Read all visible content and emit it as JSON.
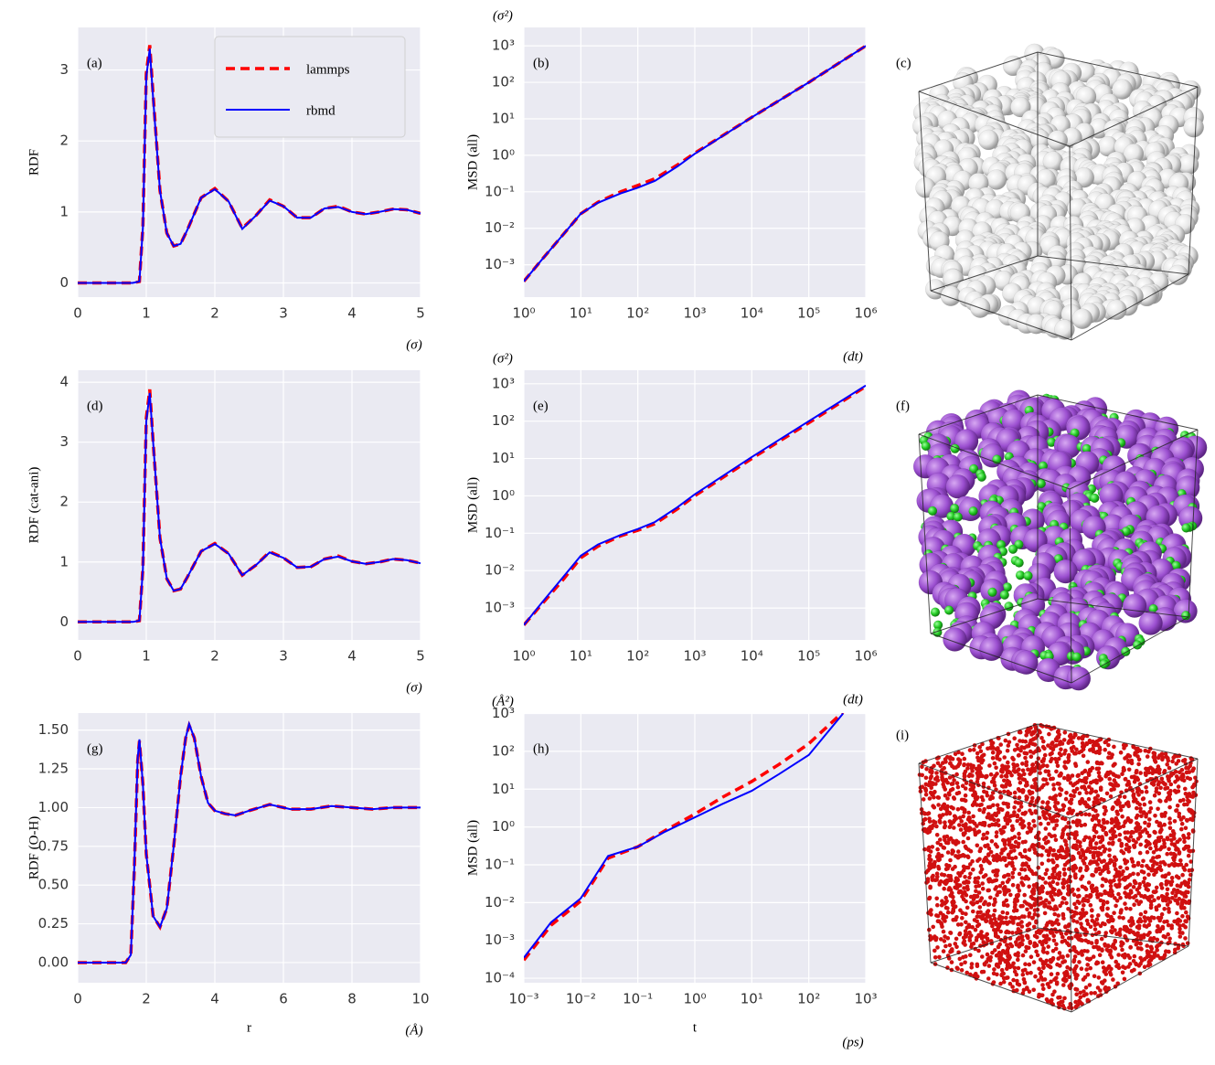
{
  "chart_data": [
    {
      "type": "line",
      "panel_label": "(a)",
      "ylabel": "RDF",
      "x_unit": "(σ)",
      "legend": "upper right",
      "grid": true,
      "xlim": [
        0,
        5
      ],
      "xticks": [
        0,
        1,
        2,
        3,
        4,
        5
      ],
      "ylim": [
        -0.2,
        3.6
      ],
      "yticks": [
        0,
        1,
        2,
        3
      ],
      "x": [
        0,
        0.5,
        0.8,
        0.9,
        0.95,
        1.0,
        1.05,
        1.1,
        1.2,
        1.3,
        1.4,
        1.5,
        1.6,
        1.8,
        2.0,
        2.2,
        2.4,
        2.6,
        2.8,
        3.0,
        3.2,
        3.4,
        3.6,
        3.8,
        4.0,
        4.2,
        4.4,
        4.6,
        4.8,
        5.0
      ],
      "series": [
        {
          "name": "lammps",
          "color": "#ff0000",
          "dashed": true,
          "values": [
            0,
            0,
            0,
            0.02,
            0.8,
            2.95,
            3.35,
            2.65,
            1.3,
            0.7,
            0.52,
            0.55,
            0.75,
            1.2,
            1.33,
            1.15,
            0.77,
            0.95,
            1.17,
            1.08,
            0.92,
            0.92,
            1.05,
            1.08,
            1.0,
            0.97,
            1.0,
            1.04,
            1.03,
            0.98
          ]
        },
        {
          "name": "rbmd",
          "color": "#0000ff",
          "dashed": false,
          "values": [
            0,
            0,
            0,
            0.02,
            0.78,
            2.9,
            3.3,
            2.6,
            1.3,
            0.7,
            0.52,
            0.55,
            0.75,
            1.2,
            1.32,
            1.15,
            0.76,
            0.95,
            1.16,
            1.08,
            0.92,
            0.92,
            1.05,
            1.07,
            1.0,
            0.97,
            1.0,
            1.04,
            1.03,
            0.98
          ]
        }
      ]
    },
    {
      "type": "line",
      "panel_label": "(b)",
      "ylabel": "MSD (all)",
      "x_unit": "(dt)",
      "y_unit": "(σ²)",
      "grid": true,
      "xscale": "log",
      "yscale": "log",
      "xlim": [
        1,
        1000000
      ],
      "xticks": [
        {
          "value": 1,
          "label": "10⁰"
        },
        {
          "value": 10,
          "label": "10¹"
        },
        {
          "value": 100,
          "label": "10²"
        },
        {
          "value": 1000,
          "label": "10³"
        },
        {
          "value": 10000,
          "label": "10⁴"
        },
        {
          "value": 100000,
          "label": "10⁵"
        },
        {
          "value": 1000000,
          "label": "10⁶"
        }
      ],
      "ylim": [
        0.00013,
        3200
      ],
      "yticks": [
        {
          "value": 0.001,
          "label": "10⁻³"
        },
        {
          "value": 0.01,
          "label": "10⁻²"
        },
        {
          "value": 0.1,
          "label": "10⁻¹"
        },
        {
          "value": 1,
          "label": "10⁰"
        },
        {
          "value": 10,
          "label": "10¹"
        },
        {
          "value": 100,
          "label": "10²"
        },
        {
          "value": 1000,
          "label": "10³"
        }
      ],
      "x": [
        1,
        2,
        5,
        10,
        20,
        50,
        100,
        200,
        500,
        1000,
        10000,
        100000,
        1000000
      ],
      "series": [
        {
          "name": "lammps",
          "color": "#ff0000",
          "dashed": true,
          "values": [
            0.00035,
            0.0013,
            0.007,
            0.025,
            0.052,
            0.1,
            0.15,
            0.23,
            0.55,
            1.15,
            11,
            100,
            1000
          ]
        },
        {
          "name": "rbmd",
          "color": "#0000ff",
          "dashed": false,
          "values": [
            0.00035,
            0.0013,
            0.007,
            0.025,
            0.05,
            0.09,
            0.13,
            0.2,
            0.5,
            1.1,
            11,
            100,
            1000
          ]
        }
      ]
    },
    {
      "type": "line",
      "panel_label": "(d)",
      "ylabel": "RDF (cat-ani)",
      "x_unit": "(σ)",
      "grid": true,
      "xlim": [
        0,
        5
      ],
      "xticks": [
        0,
        1,
        2,
        3,
        4,
        5
      ],
      "ylim": [
        -0.3,
        4.2
      ],
      "yticks": [
        0,
        1,
        2,
        3,
        4
      ],
      "x": [
        0,
        0.5,
        0.8,
        0.9,
        0.95,
        1.0,
        1.05,
        1.1,
        1.2,
        1.3,
        1.4,
        1.5,
        1.6,
        1.8,
        2.0,
        2.2,
        2.4,
        2.6,
        2.8,
        3.0,
        3.2,
        3.4,
        3.6,
        3.8,
        4.0,
        4.2,
        4.4,
        4.6,
        4.8,
        5.0
      ],
      "series": [
        {
          "name": "lammps",
          "color": "#ff0000",
          "dashed": true,
          "values": [
            0,
            0,
            0,
            0.02,
            0.9,
            3.4,
            3.88,
            3.0,
            1.4,
            0.72,
            0.52,
            0.55,
            0.75,
            1.18,
            1.31,
            1.14,
            0.78,
            0.95,
            1.17,
            1.07,
            0.91,
            0.92,
            1.05,
            1.1,
            1.01,
            0.97,
            1.0,
            1.05,
            1.03,
            0.98
          ]
        },
        {
          "name": "rbmd",
          "color": "#0000ff",
          "dashed": false,
          "values": [
            0,
            0,
            0,
            0.02,
            0.88,
            3.35,
            3.82,
            3.0,
            1.4,
            0.72,
            0.52,
            0.55,
            0.75,
            1.18,
            1.3,
            1.14,
            0.78,
            0.95,
            1.16,
            1.07,
            0.91,
            0.92,
            1.05,
            1.09,
            1.01,
            0.97,
            1.0,
            1.05,
            1.03,
            0.98
          ]
        }
      ]
    },
    {
      "type": "line",
      "panel_label": "(e)",
      "ylabel": "MSD (all)",
      "x_unit": "(dt)",
      "y_unit": "(σ²)",
      "grid": true,
      "xscale": "log",
      "yscale": "log",
      "xlim": [
        1,
        1000000
      ],
      "xticks": [
        {
          "value": 1,
          "label": "10⁰"
        },
        {
          "value": 10,
          "label": "10¹"
        },
        {
          "value": 100,
          "label": "10²"
        },
        {
          "value": 1000,
          "label": "10³"
        },
        {
          "value": 10000,
          "label": "10⁴"
        },
        {
          "value": 100000,
          "label": "10⁵"
        },
        {
          "value": 1000000,
          "label": "10⁶"
        }
      ],
      "ylim": [
        0.00014,
        2300
      ],
      "yticks": [
        {
          "value": 0.001,
          "label": "10⁻³"
        },
        {
          "value": 0.01,
          "label": "10⁻²"
        },
        {
          "value": 0.1,
          "label": "10⁻¹"
        },
        {
          "value": 1,
          "label": "10⁰"
        },
        {
          "value": 10,
          "label": "10¹"
        },
        {
          "value": 100,
          "label": "10²"
        },
        {
          "value": 1000,
          "label": "10³"
        }
      ],
      "x": [
        1,
        2,
        5,
        10,
        20,
        50,
        100,
        200,
        500,
        1000,
        10000,
        100000,
        1000000
      ],
      "series": [
        {
          "name": "lammps",
          "color": "#ff0000",
          "dashed": true,
          "values": [
            0.00035,
            0.0012,
            0.006,
            0.022,
            0.045,
            0.085,
            0.12,
            0.18,
            0.45,
            1.0,
            10,
            90,
            850
          ]
        },
        {
          "name": "rbmd",
          "color": "#0000ff",
          "dashed": false,
          "values": [
            0.00035,
            0.0013,
            0.007,
            0.025,
            0.05,
            0.09,
            0.13,
            0.2,
            0.5,
            1.1,
            11,
            100,
            900
          ]
        }
      ]
    },
    {
      "type": "line",
      "panel_label": "(g)",
      "ylabel": "RDF (O-H)",
      "xlabel": "r",
      "x_unit": "(Å)",
      "grid": true,
      "xlim": [
        0,
        10
      ],
      "xticks": [
        0,
        2,
        4,
        6,
        8,
        10
      ],
      "ylim": [
        -0.13,
        1.61
      ],
      "yticks": [
        {
          "value": 0,
          "label": "0.00"
        },
        0.25,
        {
          "value": 0.5,
          "label": "0.50"
        },
        0.75,
        {
          "value": 1,
          "label": "1.00"
        },
        1.25,
        {
          "value": 1.5,
          "label": "1.50"
        }
      ],
      "x": [
        0,
        1.4,
        1.55,
        1.65,
        1.75,
        1.8,
        1.9,
        2.0,
        2.2,
        2.4,
        2.6,
        2.8,
        3.0,
        3.15,
        3.25,
        3.4,
        3.6,
        3.8,
        4.0,
        4.3,
        4.6,
        5.0,
        5.6,
        6.2,
        6.8,
        7.4,
        8.0,
        8.6,
        9.2,
        10
      ],
      "series": [
        {
          "name": "lammps",
          "color": "#ff0000",
          "dashed": true,
          "values": [
            0,
            0,
            0.05,
            0.6,
            1.3,
            1.43,
            1.15,
            0.7,
            0.3,
            0.23,
            0.35,
            0.75,
            1.2,
            1.45,
            1.53,
            1.45,
            1.2,
            1.03,
            0.98,
            0.96,
            0.95,
            0.98,
            1.02,
            0.99,
            0.99,
            1.01,
            1.0,
            0.99,
            1.0,
            1.0
          ]
        },
        {
          "name": "rbmd",
          "color": "#0000ff",
          "dashed": false,
          "values": [
            0,
            0,
            0.05,
            0.62,
            1.32,
            1.44,
            1.15,
            0.7,
            0.3,
            0.23,
            0.35,
            0.75,
            1.2,
            1.45,
            1.54,
            1.45,
            1.2,
            1.03,
            0.98,
            0.96,
            0.95,
            0.98,
            1.02,
            0.99,
            0.99,
            1.01,
            1.0,
            0.99,
            1.0,
            1.0
          ]
        }
      ]
    },
    {
      "type": "line",
      "panel_label": "(h)",
      "ylabel": "MSD (all)",
      "xlabel": "t",
      "x_unit": "(ps)",
      "y_unit": "(Å²)",
      "grid": true,
      "xscale": "log",
      "yscale": "log",
      "xlim": [
        0.001,
        1000
      ],
      "xticks": [
        {
          "value": 0.001,
          "label": "10⁻³"
        },
        {
          "value": 0.01,
          "label": "10⁻²"
        },
        {
          "value": 0.1,
          "label": "10⁻¹"
        },
        {
          "value": 1,
          "label": "10⁰"
        },
        {
          "value": 10,
          "label": "10¹"
        },
        {
          "value": 100,
          "label": "10²"
        },
        {
          "value": 1000,
          "label": "10³"
        }
      ],
      "ylim": [
        7.6e-05,
        1030
      ],
      "yticks": [
        {
          "value": 0.0001,
          "label": "10⁻⁴"
        },
        {
          "value": 0.001,
          "label": "10⁻³"
        },
        {
          "value": 0.01,
          "label": "10⁻²"
        },
        {
          "value": 0.1,
          "label": "10⁻¹"
        },
        {
          "value": 1,
          "label": "10⁰"
        },
        {
          "value": 10,
          "label": "10¹"
        },
        {
          "value": 100,
          "label": "10²"
        },
        {
          "value": 1000,
          "label": "10³"
        }
      ],
      "x": [
        0.001,
        0.003,
        0.01,
        0.03,
        0.1,
        0.3,
        1,
        3,
        10,
        30,
        100,
        400
      ],
      "series": [
        {
          "name": "lammps",
          "color": "#ff0000",
          "dashed": true,
          "values": [
            0.0003,
            0.0025,
            0.011,
            0.15,
            0.3,
            0.8,
            2.2,
            6,
            16,
            45,
            160,
            1100
          ]
        },
        {
          "name": "rbmd",
          "color": "#0000ff",
          "dashed": false,
          "values": [
            0.00035,
            0.003,
            0.013,
            0.17,
            0.3,
            0.75,
            1.8,
            4,
            9,
            25,
            80,
            1000
          ]
        }
      ]
    }
  ],
  "images": [
    {
      "panel_label": "(c)"
    },
    {
      "panel_label": "(f)"
    },
    {
      "panel_label": "(i)"
    }
  ]
}
